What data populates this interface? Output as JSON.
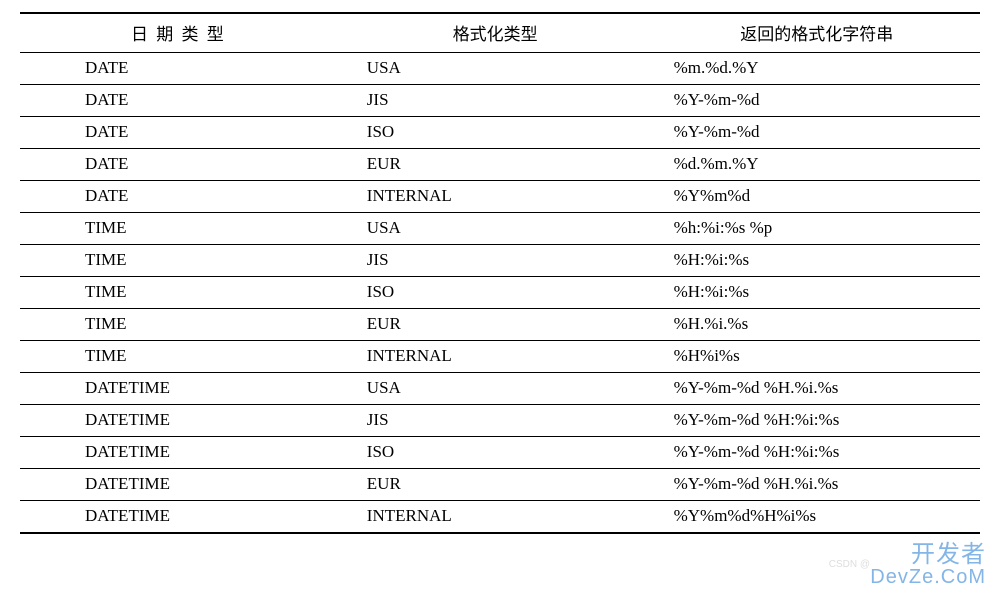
{
  "table": {
    "columns": [
      "日 期 类 型",
      "格式化类型",
      "返回的格式化字符串"
    ],
    "column_align": [
      "center",
      "center",
      "center"
    ],
    "header_fontsize": 17,
    "cell_fontsize": 17,
    "border_color": "#000000",
    "header_top_border_width": 2,
    "header_bottom_border_width": 1,
    "row_border_width": 1,
    "last_row_border_width": 2,
    "background_color": "#ffffff",
    "rows": [
      [
        "DATE",
        "USA",
        "%m.%d.%Y"
      ],
      [
        "DATE",
        "JIS",
        "%Y-%m-%d"
      ],
      [
        "DATE",
        "ISO",
        "%Y-%m-%d"
      ],
      [
        "DATE",
        "EUR",
        "%d.%m.%Y"
      ],
      [
        "DATE",
        "INTERNAL",
        "%Y%m%d"
      ],
      [
        "TIME",
        "USA",
        "%h:%i:%s %p"
      ],
      [
        "TIME",
        "JIS",
        "%H:%i:%s"
      ],
      [
        "TIME",
        "ISO",
        "%H:%i:%s"
      ],
      [
        "TIME",
        "EUR",
        "%H.%i.%s"
      ],
      [
        "TIME",
        "INTERNAL",
        "%H%i%s"
      ],
      [
        "DATETIME",
        "USA",
        "%Y-%m-%d %H.%i.%s"
      ],
      [
        "DATETIME",
        "JIS",
        "%Y-%m-%d %H:%i:%s"
      ],
      [
        "DATETIME",
        "ISO",
        "%Y-%m-%d %H:%i:%s"
      ],
      [
        "DATETIME",
        "EUR",
        "%Y-%m-%d %H.%i.%s"
      ],
      [
        "DATETIME",
        "INTERNAL",
        "%Y%m%d%H%i%s"
      ]
    ]
  },
  "watermark": {
    "line1": "开发者",
    "line2": "DevZe.CoM",
    "faint": "CSDN @   "
  }
}
